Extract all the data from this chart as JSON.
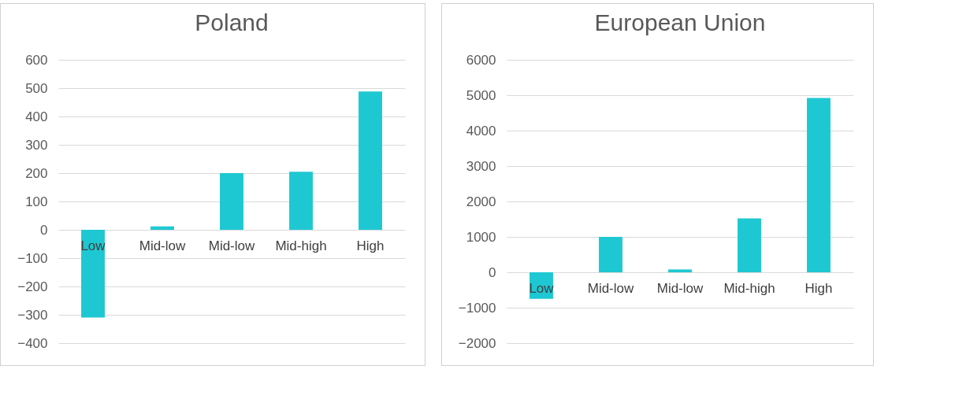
{
  "chart_data": [
    {
      "type": "bar",
      "title": "Poland",
      "categories": [
        "Low",
        "Mid-low",
        "Mid-low",
        "Mid-high",
        "High"
      ],
      "values": [
        -310,
        12,
        200,
        205,
        488
      ],
      "color": "#1ec8d2",
      "ylim": [
        -400,
        600
      ],
      "yticks": [
        -400,
        -300,
        -200,
        -100,
        0,
        100,
        200,
        300,
        400,
        500,
        600
      ],
      "grid": "y"
    },
    {
      "type": "bar",
      "title": "European Union",
      "categories": [
        "Low",
        "Mid-low",
        "Mid-low",
        "Mid-high",
        "High"
      ],
      "values": [
        -750,
        1000,
        80,
        1520,
        4920
      ],
      "color": "#1ec8d2",
      "ylim": [
        -2000,
        6000
      ],
      "yticks": [
        -2000,
        -1000,
        0,
        1000,
        2000,
        3000,
        4000,
        5000,
        6000
      ],
      "grid": "y"
    }
  ]
}
